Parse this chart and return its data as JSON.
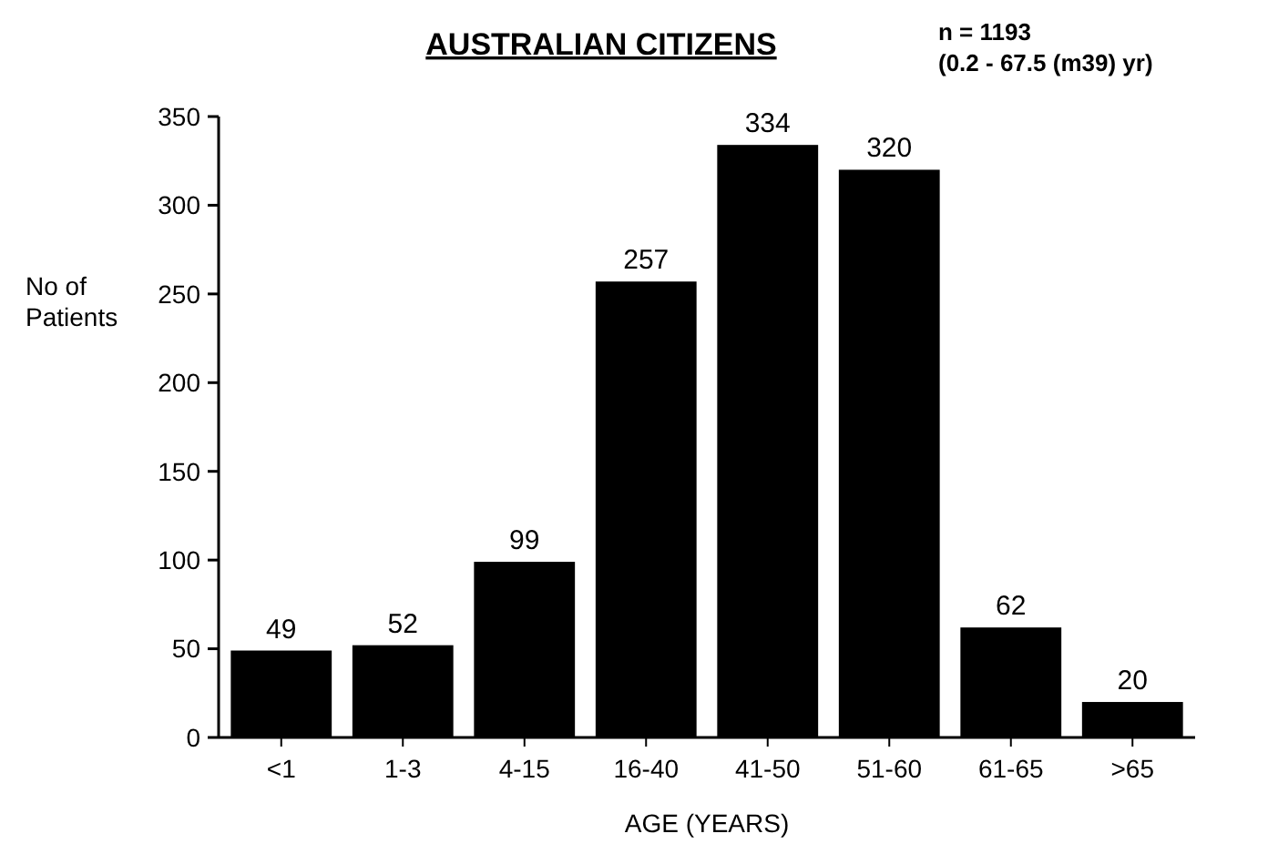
{
  "chart_data": {
    "type": "bar",
    "title": "AUSTRALIAN CITIZENS",
    "xlabel": "AGE (YEARS)",
    "ylabel": "No of\nPatients",
    "annotations": [
      "n = 1193",
      "(0.2 - 67.5 (m39) yr)"
    ],
    "categories": [
      "<1",
      "1-3",
      "4-15",
      "16-40",
      "41-50",
      "51-60",
      "61-65",
      ">65"
    ],
    "values": [
      49,
      52,
      99,
      257,
      334,
      320,
      62,
      20
    ],
    "color": "#000000",
    "ylim": [
      0,
      350
    ],
    "yticks": [
      0,
      50,
      100,
      150,
      200,
      250,
      300,
      350
    ],
    "grid": false,
    "data_labels": true
  }
}
